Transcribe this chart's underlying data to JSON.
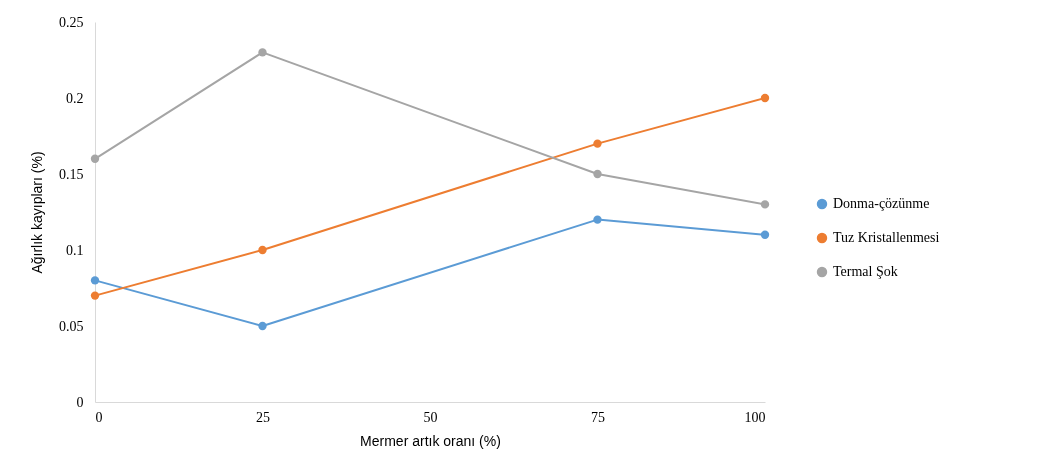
{
  "chart_data": {
    "type": "line",
    "xlabel": "Mermer artık oranı (%)",
    "ylabel": "Ağırlık kayıpları (%)",
    "x": [
      0,
      25,
      75,
      100
    ],
    "series": [
      {
        "name": "Donma-çözünme",
        "color": "#5b9bd5",
        "values": [
          0.08,
          0.05,
          0.12,
          0.11
        ]
      },
      {
        "name": "Tuz Kristallenmesi",
        "color": "#ed7d31",
        "values": [
          0.07,
          0.1,
          0.17,
          0.2
        ]
      },
      {
        "name": "Termal Şok",
        "color": "#a5a5a5",
        "values": [
          0.16,
          0.23,
          0.15,
          0.13
        ]
      }
    ],
    "xlim": [
      0,
      100
    ],
    "xticks": [
      0,
      25,
      50,
      75,
      100
    ],
    "ylim": [
      0,
      0.25
    ],
    "yticks": [
      0,
      0.05,
      0.1,
      0.15,
      0.2,
      0.25
    ],
    "grid": false,
    "legend": "right",
    "marker": "circle",
    "line_style": "solid"
  }
}
